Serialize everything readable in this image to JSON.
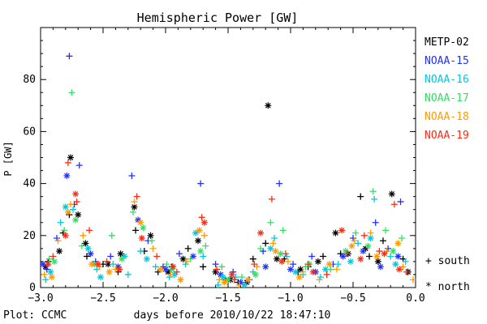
{
  "chart_data": {
    "type": "scatter",
    "title": "Hemispheric Power [GW]",
    "xlabel": "days before 2010/10/22 18:47:10",
    "ylabel": "P [GW]",
    "xlim": [
      -3.0,
      0.0
    ],
    "ylim": [
      0,
      100
    ],
    "x_ticks": [
      -3.0,
      -2.5,
      -2.0,
      -1.5,
      -1.0,
      -0.5,
      0.0
    ],
    "x_tick_labels": [
      "−3.0",
      "−2.5",
      "−2.0",
      "−1.5",
      "−1.0",
      "−0.5",
      "0.0"
    ],
    "y_ticks": [
      0,
      20,
      40,
      60,
      80
    ],
    "y_tick_labels": [
      "0",
      "20",
      "40",
      "60",
      "80"
    ],
    "grid": false,
    "legend_position": "right",
    "marker_legend": {
      "south": {
        "symbol": "+",
        "label": "+ south"
      },
      "north": {
        "symbol": "*",
        "label": "* north"
      }
    },
    "credit": "Plot: CCMC",
    "series": [
      {
        "name": "METP-02",
        "color": "#000000",
        "south": [
          [
            -2.94,
            10
          ],
          [
            -2.82,
            21
          ],
          [
            -2.77,
            28
          ],
          [
            -2.63,
            12
          ],
          [
            -2.5,
            9
          ],
          [
            -2.38,
            6
          ],
          [
            -2.24,
            22
          ],
          [
            -2.17,
            14
          ],
          [
            -2.06,
            6
          ],
          [
            -1.95,
            8
          ],
          [
            -1.82,
            15
          ],
          [
            -1.7,
            8
          ],
          [
            -1.52,
            3
          ],
          [
            -1.42,
            2
          ],
          [
            -1.3,
            11
          ],
          [
            -1.2,
            17
          ],
          [
            -1.05,
            11
          ],
          [
            -0.94,
            6
          ],
          [
            -0.86,
            8
          ],
          [
            -0.74,
            12
          ],
          [
            -0.6,
            13
          ],
          [
            -0.44,
            35
          ],
          [
            -0.37,
            12
          ],
          [
            -0.26,
            18
          ],
          [
            -0.1,
            11
          ]
        ],
        "north": [
          [
            -2.96,
            8
          ],
          [
            -2.85,
            14
          ],
          [
            -2.76,
            50
          ],
          [
            -2.7,
            28
          ],
          [
            -2.64,
            17
          ],
          [
            -2.46,
            9
          ],
          [
            -2.36,
            13
          ],
          [
            -2.25,
            31
          ],
          [
            -2.12,
            20
          ],
          [
            -1.98,
            6
          ],
          [
            -1.86,
            11
          ],
          [
            -1.74,
            18
          ],
          [
            -1.6,
            6
          ],
          [
            -1.48,
            3
          ],
          [
            -1.35,
            2
          ],
          [
            -1.18,
            70
          ],
          [
            -1.11,
            11
          ],
          [
            -0.92,
            7
          ],
          [
            -0.78,
            10
          ],
          [
            -0.64,
            21
          ],
          [
            -0.54,
            13
          ],
          [
            -0.4,
            15
          ],
          [
            -0.3,
            10
          ],
          [
            -0.19,
            36
          ],
          [
            -0.06,
            6
          ]
        ]
      },
      {
        "name": "NOAA-15",
        "color": "#2030ff",
        "south": [
          [
            -2.95,
            7
          ],
          [
            -2.87,
            19
          ],
          [
            -2.77,
            89
          ],
          [
            -2.73,
            32
          ],
          [
            -2.69,
            47
          ],
          [
            -2.56,
            10
          ],
          [
            -2.44,
            12
          ],
          [
            -2.27,
            43
          ],
          [
            -2.14,
            18
          ],
          [
            -2.02,
            8
          ],
          [
            -1.89,
            13
          ],
          [
            -1.72,
            40
          ],
          [
            -1.6,
            9
          ],
          [
            -1.46,
            6
          ],
          [
            -1.33,
            3
          ],
          [
            -1.22,
            14
          ],
          [
            -1.09,
            40
          ],
          [
            -0.98,
            9
          ],
          [
            -0.83,
            12
          ],
          [
            -0.66,
            9
          ],
          [
            -0.5,
            19
          ],
          [
            -0.32,
            25
          ],
          [
            -0.22,
            15
          ],
          [
            -0.12,
            33
          ]
        ],
        "north": [
          [
            -2.98,
            9
          ],
          [
            -2.79,
            43
          ],
          [
            -2.6,
            13
          ],
          [
            -2.38,
            8
          ],
          [
            -2.22,
            26
          ],
          [
            -2.0,
            7
          ],
          [
            -1.78,
            12
          ],
          [
            -1.56,
            5
          ],
          [
            -1.4,
            2
          ],
          [
            -1.2,
            8
          ],
          [
            -1.0,
            7
          ],
          [
            -0.8,
            6
          ],
          [
            -0.58,
            12
          ],
          [
            -0.42,
            14
          ],
          [
            -0.28,
            8
          ],
          [
            -0.14,
            12
          ]
        ]
      },
      {
        "name": "NOAA-16",
        "color": "#00c8e0",
        "south": [
          [
            -2.96,
            3
          ],
          [
            -2.84,
            25
          ],
          [
            -2.74,
            30
          ],
          [
            -2.55,
            7
          ],
          [
            -2.42,
            9
          ],
          [
            -2.3,
            5
          ],
          [
            -2.2,
            14
          ],
          [
            -2.08,
            8
          ],
          [
            -1.97,
            4
          ],
          [
            -1.84,
            9
          ],
          [
            -1.7,
            12
          ],
          [
            -1.58,
            1
          ],
          [
            -1.44,
            4
          ],
          [
            -1.3,
            6
          ],
          [
            -1.13,
            19
          ],
          [
            -1.03,
            12
          ],
          [
            -0.9,
            5
          ],
          [
            -0.76,
            4
          ],
          [
            -0.62,
            9
          ],
          [
            -0.46,
            17
          ],
          [
            -0.33,
            34
          ],
          [
            -0.2,
            12
          ],
          [
            -0.08,
            10
          ]
        ],
        "north": [
          [
            -2.92,
            6
          ],
          [
            -2.8,
            31
          ],
          [
            -2.62,
            15
          ],
          [
            -2.52,
            4
          ],
          [
            -2.33,
            12
          ],
          [
            -2.15,
            11
          ],
          [
            -1.93,
            5
          ],
          [
            -1.76,
            21
          ],
          [
            -1.54,
            4
          ],
          [
            -1.37,
            1
          ],
          [
            -1.16,
            15
          ],
          [
            -0.96,
            6
          ],
          [
            -0.72,
            7
          ],
          [
            -0.52,
            10
          ],
          [
            -0.36,
            19
          ],
          [
            -0.16,
            9
          ]
        ]
      },
      {
        "name": "NOAA-17",
        "color": "#30e060",
        "south": [
          [
            -2.93,
            11
          ],
          [
            -2.81,
            22
          ],
          [
            -2.75,
            75
          ],
          [
            -2.67,
            16
          ],
          [
            -2.43,
            20
          ],
          [
            -2.26,
            29
          ],
          [
            -2.11,
            18
          ],
          [
            -1.99,
            9
          ],
          [
            -1.8,
            11
          ],
          [
            -1.68,
            16
          ],
          [
            -1.55,
            8
          ],
          [
            -1.39,
            4
          ],
          [
            -1.24,
            15
          ],
          [
            -1.16,
            25
          ],
          [
            -1.06,
            22
          ],
          [
            -0.88,
            8
          ],
          [
            -0.68,
            7
          ],
          [
            -0.48,
            21
          ],
          [
            -0.34,
            37
          ],
          [
            -0.24,
            22
          ],
          [
            -0.11,
            19
          ]
        ],
        "north": [
          [
            -2.89,
            10
          ],
          [
            -2.72,
            26
          ],
          [
            -2.57,
            9
          ],
          [
            -2.35,
            11
          ],
          [
            -2.18,
            23
          ],
          [
            -1.95,
            7
          ],
          [
            -1.72,
            14
          ],
          [
            -1.5,
            3
          ],
          [
            -1.28,
            5
          ],
          [
            -1.08,
            13
          ],
          [
            -0.85,
            9
          ],
          [
            -0.56,
            14
          ],
          [
            -0.38,
            16
          ],
          [
            -0.18,
            14
          ]
        ]
      },
      {
        "name": "NOAA-18",
        "color": "#ff9a00",
        "south": [
          [
            -2.97,
            5
          ],
          [
            -2.86,
            18
          ],
          [
            -2.76,
            32
          ],
          [
            -2.66,
            20
          ],
          [
            -2.53,
            8
          ],
          [
            -2.4,
            7
          ],
          [
            -2.25,
            33
          ],
          [
            -2.1,
            15
          ],
          [
            -1.96,
            5
          ],
          [
            -1.83,
            10
          ],
          [
            -1.69,
            20
          ],
          [
            -1.57,
            3
          ],
          [
            -1.41,
            1
          ],
          [
            -1.27,
            8
          ],
          [
            -1.14,
            17
          ],
          [
            -1.02,
            10
          ],
          [
            -0.9,
            6
          ],
          [
            -0.77,
            3
          ],
          [
            -0.63,
            7
          ],
          [
            -0.49,
            18
          ],
          [
            -0.36,
            21
          ],
          [
            -0.23,
            14
          ],
          [
            -0.1,
            8
          ],
          [
            -0.02,
            3
          ]
        ],
        "north": [
          [
            -2.91,
            4
          ],
          [
            -2.78,
            29
          ],
          [
            -2.59,
            9
          ],
          [
            -2.45,
            6
          ],
          [
            -2.2,
            25
          ],
          [
            -2.04,
            7
          ],
          [
            -1.88,
            3
          ],
          [
            -1.73,
            22
          ],
          [
            -1.53,
            2
          ],
          [
            -1.34,
            3
          ],
          [
            -1.12,
            14
          ],
          [
            -0.93,
            4
          ],
          [
            -0.69,
            9
          ],
          [
            -0.51,
            16
          ],
          [
            -0.31,
            12
          ],
          [
            -0.14,
            17
          ]
        ]
      },
      {
        "name": "NOAA-19",
        "color": "#ff2a10",
        "south": [
          [
            -2.9,
            12
          ],
          [
            -2.78,
            48
          ],
          [
            -2.71,
            33
          ],
          [
            -2.61,
            22
          ],
          [
            -2.47,
            10
          ],
          [
            -2.23,
            35
          ],
          [
            -2.07,
            12
          ],
          [
            -1.91,
            6
          ],
          [
            -1.71,
            27
          ],
          [
            -1.59,
            7
          ],
          [
            -1.45,
            3
          ],
          [
            -1.29,
            9
          ],
          [
            -1.15,
            34
          ],
          [
            -1.04,
            13
          ],
          [
            -0.86,
            9
          ],
          [
            -0.71,
            5
          ],
          [
            -0.55,
            13
          ],
          [
            -0.41,
            20
          ],
          [
            -0.29,
            14
          ],
          [
            -0.17,
            32
          ],
          [
            -0.07,
            6
          ]
        ],
        "north": [
          [
            -2.94,
            9
          ],
          [
            -2.8,
            20
          ],
          [
            -2.72,
            36
          ],
          [
            -2.54,
            9
          ],
          [
            -2.37,
            7
          ],
          [
            -2.19,
            19
          ],
          [
            -1.94,
            8
          ],
          [
            -1.69,
            25
          ],
          [
            -1.47,
            5
          ],
          [
            -1.24,
            21
          ],
          [
            -1.07,
            10
          ],
          [
            -0.82,
            6
          ],
          [
            -0.59,
            22
          ],
          [
            -0.44,
            11
          ],
          [
            -0.25,
            13
          ],
          [
            -0.13,
            7
          ]
        ]
      }
    ]
  }
}
